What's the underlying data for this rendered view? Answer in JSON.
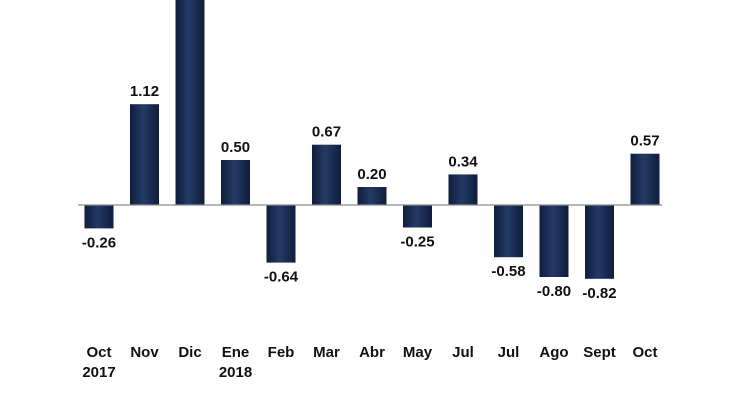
{
  "chart_data": {
    "type": "bar",
    "categories": [
      [
        "Oct",
        "2017"
      ],
      [
        "Nov"
      ],
      [
        "Dic"
      ],
      [
        "Ene",
        "2018"
      ],
      [
        "Feb"
      ],
      [
        "Mar"
      ],
      [
        "Abr"
      ],
      [
        "May"
      ],
      [
        "Jul"
      ],
      [
        "Jul"
      ],
      [
        "Ago"
      ],
      [
        "Sept"
      ],
      [
        "Oct"
      ]
    ],
    "values": [
      -0.26,
      1.12,
      null,
      0.5,
      -0.64,
      0.67,
      0.2,
      -0.25,
      0.34,
      -0.58,
      -0.8,
      -0.82,
      0.57
    ],
    "labels": [
      "-0.26",
      "1.12",
      "",
      "0.50",
      "-0.64",
      "0.67",
      "0.20",
      "-0.25",
      "0.34",
      "-0.58",
      "-0.80",
      "-0.82",
      "0.57"
    ],
    "clipped_top_index": 2,
    "bar_color": "#1a2b50",
    "title": "",
    "xlabel": "",
    "ylabel": "",
    "grid": false,
    "legend": "none"
  }
}
